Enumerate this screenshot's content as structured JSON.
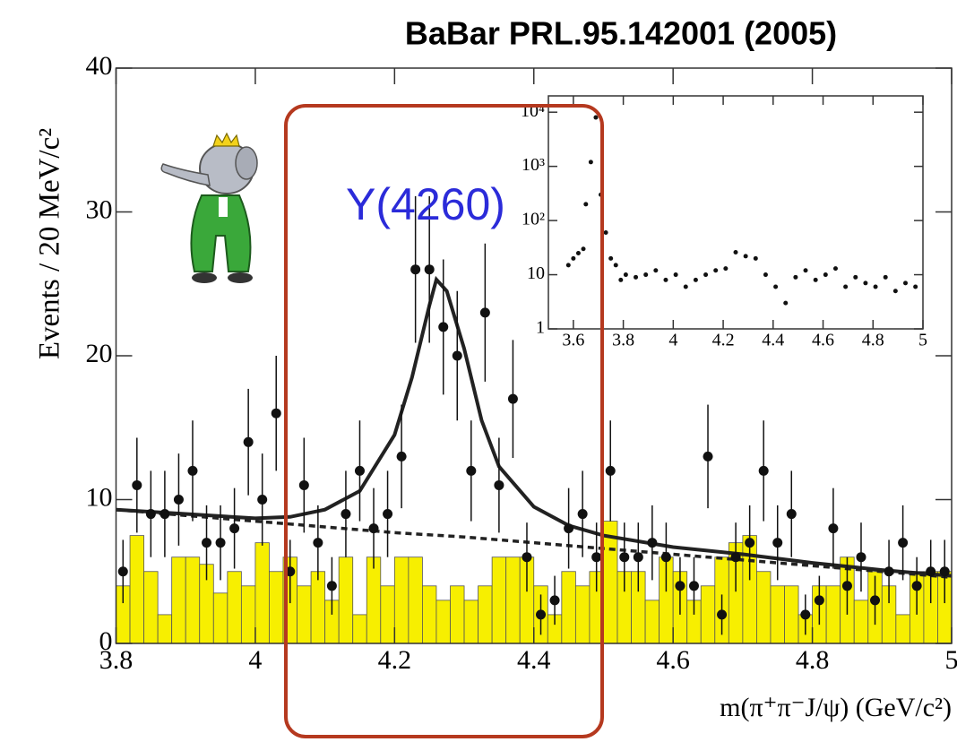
{
  "chart_data": [
    {
      "type": "scatter",
      "title": "BaBar PRL.95.142001 (2005)",
      "x_label": "m(π⁺π⁻J/ψ) (GeV/c²)",
      "y_label": "Events / 20 MeV/c²",
      "annotation": "Y(4260)",
      "xlim": [
        3.8,
        5.0
      ],
      "xticks": [
        3.8,
        4,
        4.2,
        4.4,
        4.6,
        4.8,
        5
      ],
      "ylim": [
        0,
        40
      ],
      "yticks": [
        0,
        10,
        20,
        30,
        40
      ],
      "bins": [
        3.8,
        3.82,
        3.84,
        3.86,
        3.88,
        3.9,
        3.92,
        3.94,
        3.96,
        3.98,
        4,
        4.02,
        4.04,
        4.06,
        4.08,
        4.1,
        4.12,
        4.14,
        4.16,
        4.18,
        4.2,
        4.22,
        4.24,
        4.26,
        4.28,
        4.3,
        4.32,
        4.34,
        4.36,
        4.38,
        4.4,
        4.42,
        4.44,
        4.46,
        4.48,
        4.5,
        4.52,
        4.54,
        4.56,
        4.58,
        4.6,
        4.62,
        4.64,
        4.66,
        4.68,
        4.7,
        4.72,
        4.74,
        4.76,
        4.78,
        4.8,
        4.82,
        4.84,
        4.86,
        4.88,
        4.9,
        4.92,
        4.94,
        4.96,
        4.98,
        5
      ],
      "data": {
        "color": "#111111",
        "values": [
          5,
          11,
          9,
          9,
          10,
          12,
          7,
          7,
          8,
          14,
          10,
          16,
          5,
          11,
          7,
          4,
          9,
          12,
          8,
          9,
          13,
          26,
          26,
          22,
          20,
          12,
          23,
          11,
          17,
          6,
          2,
          3,
          8,
          9,
          6,
          12,
          6,
          6,
          7,
          6,
          4,
          4,
          13,
          2,
          6,
          7,
          12,
          7,
          9,
          2,
          3,
          8,
          4,
          6,
          3,
          5,
          7,
          4,
          5,
          5
        ],
        "errors": [
          2.2,
          3.3,
          3,
          3,
          3.2,
          3.5,
          2.6,
          2.6,
          2.8,
          3.7,
          3.2,
          4,
          2.2,
          3.3,
          2.6,
          2,
          3,
          3.5,
          2.8,
          3,
          3.6,
          5.1,
          5.1,
          4.7,
          4.5,
          3.5,
          4.8,
          3.3,
          4.1,
          2.4,
          1.4,
          1.7,
          2.8,
          3,
          2.4,
          3.5,
          2.4,
          2.4,
          2.6,
          2.4,
          2,
          2,
          3.6,
          1.4,
          2.4,
          2.6,
          3.5,
          2.6,
          3,
          1.4,
          1.7,
          2.8,
          2,
          2.4,
          1.7,
          2.2,
          2.6,
          2,
          2.2,
          2.2
        ]
      },
      "mc": {
        "color": "#f7ef00",
        "values": [
          4,
          7.5,
          5,
          2,
          6,
          6,
          5.5,
          3.5,
          5,
          4,
          7,
          5,
          6,
          4,
          5,
          3,
          6,
          2,
          6,
          4,
          6,
          6,
          4,
          3,
          4,
          3,
          4,
          6,
          6,
          6,
          4,
          2,
          5,
          4,
          5,
          8.5,
          5,
          5,
          3,
          6,
          5,
          3,
          4,
          6,
          7,
          7.5,
          5,
          4,
          4,
          2,
          4,
          4,
          6,
          3,
          5,
          4,
          2,
          5,
          5,
          5
        ]
      },
      "fit": {
        "color": "#222222",
        "x": [
          3.8,
          3.9,
          4.0,
          4.05,
          4.1,
          4.15,
          4.2,
          4.225,
          4.25,
          4.26,
          4.275,
          4.3,
          4.325,
          4.35,
          4.4,
          4.45,
          4.5,
          4.6,
          4.7,
          4.8,
          4.9,
          5.0
        ],
        "values": [
          9.3,
          9.0,
          8.7,
          8.8,
          9.3,
          10.6,
          14.5,
          18.5,
          23.5,
          25.3,
          24.5,
          20.5,
          15.5,
          12.3,
          9.5,
          8.2,
          7.5,
          6.7,
          6.2,
          5.6,
          5.1,
          4.7
        ]
      },
      "background": {
        "color": "#222222",
        "dashed": true,
        "x": [
          3.8,
          3.9,
          4.0,
          4.1,
          4.2,
          4.3,
          4.4,
          4.5,
          4.6,
          4.7,
          4.8,
          4.9,
          5.0
        ],
        "values": [
          9.3,
          8.9,
          8.5,
          8.1,
          7.7,
          7.4,
          7.0,
          6.6,
          6.2,
          5.8,
          5.4,
          5.0,
          4.6
        ]
      }
    },
    {
      "type": "scatter",
      "log_y": true,
      "color": "#111111",
      "xlim": [
        3.5,
        5.0
      ],
      "xticks": [
        3.6,
        3.8,
        4,
        4.2,
        4.4,
        4.6,
        4.8,
        5
      ],
      "ylim": [
        1,
        20000
      ],
      "yticks": [
        1,
        10,
        {
          "value": 100,
          "label": "10²"
        },
        {
          "value": 1000,
          "label": "10³"
        },
        {
          "value": 10000,
          "label": "10⁴"
        }
      ],
      "x": [
        3.58,
        3.6,
        3.62,
        3.64,
        3.65,
        3.67,
        3.69,
        3.71,
        3.73,
        3.75,
        3.77,
        3.79,
        3.81,
        3.85,
        3.89,
        3.93,
        3.97,
        4.01,
        4.05,
        4.09,
        4.13,
        4.17,
        4.21,
        4.25,
        4.29,
        4.33,
        4.37,
        4.41,
        4.45,
        4.49,
        4.53,
        4.57,
        4.61,
        4.65,
        4.69,
        4.73,
        4.77,
        4.81,
        4.85,
        4.89,
        4.93,
        4.97
      ],
      "values": [
        15,
        20,
        25,
        30,
        200,
        1200,
        8000,
        300,
        60,
        20,
        15,
        8,
        10,
        9,
        10,
        12,
        8,
        10,
        6,
        8,
        10,
        12,
        13,
        26,
        22,
        20,
        10,
        6,
        3,
        9,
        12,
        8,
        10,
        13,
        6,
        9,
        7,
        6,
        9,
        5,
        7,
        6
      ]
    }
  ]
}
